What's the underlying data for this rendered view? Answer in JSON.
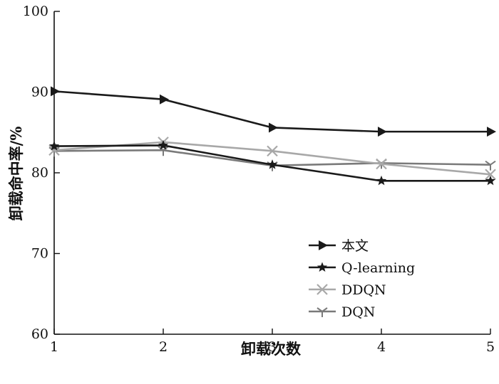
{
  "chart_data": {
    "type": "line",
    "title": "",
    "xlabel": "卸载次数",
    "ylabel": "卸载命中率/%",
    "x": [
      1,
      2,
      3,
      4,
      5
    ],
    "xlim": [
      1,
      5
    ],
    "ylim": [
      60,
      100
    ],
    "xticks": [
      "1",
      "2",
      "3",
      "4",
      "5"
    ],
    "yticks": [
      "60",
      "70",
      "80",
      "90",
      "100"
    ],
    "grid": false,
    "legend_position": "bottom-right",
    "series": [
      {
        "name": "本文",
        "values": [
          90.1,
          89.1,
          85.6,
          85.1,
          85.1
        ],
        "color": "#1a1a1a",
        "marker": "triangle-right-icon"
      },
      {
        "name": "Q-learning",
        "values": [
          83.3,
          83.4,
          81.0,
          79.0,
          79.0
        ],
        "color": "#1a1a1a",
        "marker": "star-icon"
      },
      {
        "name": "DDQN",
        "values": [
          82.8,
          83.8,
          82.7,
          81.1,
          79.8
        ],
        "color": "#a8a8a8",
        "marker": "x-cross-icon"
      },
      {
        "name": "DQN",
        "values": [
          82.7,
          82.8,
          80.9,
          81.2,
          81.0
        ],
        "color": "#7a7a7a",
        "marker": "tri-down-icon"
      }
    ]
  }
}
